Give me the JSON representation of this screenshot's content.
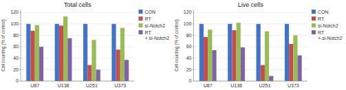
{
  "chart_data": [
    {
      "type": "bar",
      "title": "Total cells",
      "y_label": "Cell counting (% of control)",
      "categories": [
        "U87",
        "U138",
        "U251",
        "U373"
      ],
      "series": [
        {
          "name": "CON",
          "color": "#4472c4",
          "values": [
            100,
            100,
            100,
            100
          ]
        },
        {
          "name": "RT",
          "color": "#c0504d",
          "values": [
            88,
            97,
            28,
            55
          ]
        },
        {
          "name": "si-Notch2",
          "color": "#9bbb59",
          "values": [
            98,
            113,
            72,
            93
          ]
        },
        {
          "name": "RT\n+ si-Notch2",
          "color": "#8064a2",
          "values": [
            60,
            75,
            20,
            37
          ]
        }
      ],
      "ylim": [
        0,
        125
      ],
      "yticks": [
        0,
        20,
        40,
        60,
        80,
        100,
        120
      ],
      "grid": true,
      "legend": "right"
    },
    {
      "type": "bar",
      "title": "Live cells",
      "y_label": "Cell counting (% of control)",
      "categories": [
        "U87",
        "U138",
        "U251",
        "U373"
      ],
      "series": [
        {
          "name": "CON",
          "color": "#4472c4",
          "values": [
            100,
            100,
            100,
            100
          ]
        },
        {
          "name": "RT",
          "color": "#c0504d",
          "values": [
            77,
            89,
            28,
            65
          ]
        },
        {
          "name": "si-Notch2",
          "color": "#9bbb59",
          "values": [
            90,
            102,
            87,
            80
          ]
        },
        {
          "name": "RT\n+ si-Notch2",
          "color": "#8064a2",
          "values": [
            54,
            59,
            9,
            45
          ]
        }
      ],
      "ylim": [
        0,
        125
      ],
      "yticks": [
        0,
        20,
        40,
        60,
        80,
        100,
        120
      ],
      "grid": true,
      "legend": "right"
    }
  ]
}
